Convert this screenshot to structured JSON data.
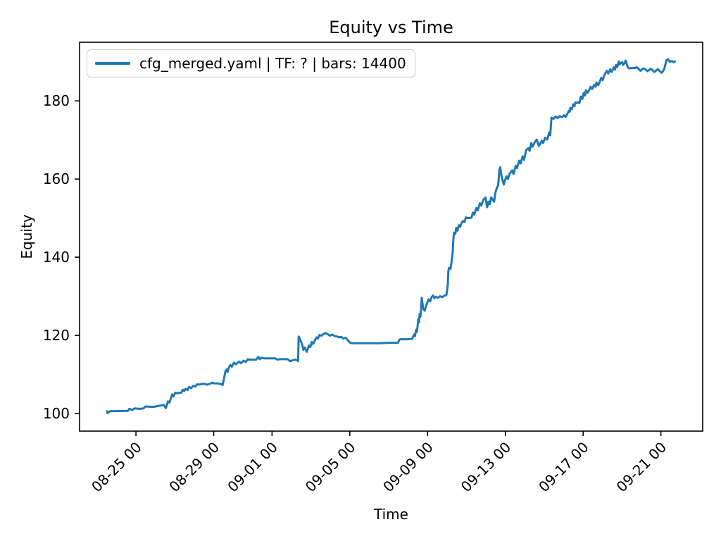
{
  "figure": {
    "title": "Equity vs Time",
    "xlabel": "Time",
    "ylabel": "Equity",
    "legend_label": "cfg_merged.yaml | TF: ? | bars: 14400",
    "colors": {
      "line": "#1f77b4",
      "spine": "#000000",
      "tick_label": "#000000",
      "legend_border": "#cccccc",
      "background": "#ffffff"
    }
  },
  "chart_data": {
    "type": "line",
    "title": "Equity vs Time",
    "xlabel": "Time",
    "ylabel": "Equity",
    "grid": false,
    "legend_position": "upper left",
    "legend_entries": [
      "cfg_merged.yaml | TF: ? | bars: 14400"
    ],
    "x_unit": "days relative to 08-25 00:00",
    "xlim": [
      -2.9,
      29.15
    ],
    "ylim": [
      95.5,
      195.0
    ],
    "y_ticks": [
      100,
      120,
      140,
      160,
      180
    ],
    "x_ticks": [
      {
        "day": 0,
        "label": "08-25 00"
      },
      {
        "day": 4,
        "label": "08-29 00"
      },
      {
        "day": 7,
        "label": "09-01 00"
      },
      {
        "day": 11,
        "label": "09-05 00"
      },
      {
        "day": 15,
        "label": "09-09 00"
      },
      {
        "day": 19,
        "label": "09-13 00"
      },
      {
        "day": 23,
        "label": "09-17 00"
      },
      {
        "day": 27,
        "label": "09-21 00"
      }
    ],
    "series": [
      {
        "name": "cfg_merged.yaml | TF: ? | bars: 14400",
        "color": "#1f77b4",
        "points": [
          [
            -1.49,
            100.6
          ],
          [
            -1.46,
            100.1
          ],
          [
            -1.34,
            100.6
          ],
          [
            -0.41,
            100.7
          ],
          [
            -0.34,
            101.2
          ],
          [
            -0.19,
            100.9
          ],
          [
            -0.08,
            101.3
          ],
          [
            0.2,
            101.2
          ],
          [
            0.39,
            101.3
          ],
          [
            0.49,
            101.8
          ],
          [
            0.9,
            101.7
          ],
          [
            1.1,
            101.9
          ],
          [
            1.32,
            102.1
          ],
          [
            1.43,
            102.2
          ],
          [
            1.54,
            101.4
          ],
          [
            1.65,
            103.1
          ],
          [
            1.72,
            102.8
          ],
          [
            1.79,
            103.7
          ],
          [
            1.86,
            104.9
          ],
          [
            1.94,
            104.4
          ],
          [
            2.01,
            105.3
          ],
          [
            2.08,
            105.2
          ],
          [
            2.33,
            105.3
          ],
          [
            2.41,
            106.1
          ],
          [
            2.48,
            105.7
          ],
          [
            2.55,
            106.3
          ],
          [
            2.66,
            106.0
          ],
          [
            2.73,
            106.8
          ],
          [
            2.84,
            106.5
          ],
          [
            2.95,
            107.1
          ],
          [
            3.05,
            106.9
          ],
          [
            3.16,
            107.5
          ],
          [
            3.23,
            107.4
          ],
          [
            3.49,
            107.6
          ],
          [
            3.67,
            107.4
          ],
          [
            3.85,
            107.7
          ],
          [
            3.92,
            107.9
          ],
          [
            4.03,
            107.7
          ],
          [
            4.21,
            107.7
          ],
          [
            4.39,
            107.5
          ],
          [
            4.46,
            107.3
          ],
          [
            4.53,
            109.0
          ],
          [
            4.6,
            110.8
          ],
          [
            4.68,
            111.3
          ],
          [
            4.71,
            110.6
          ],
          [
            4.78,
            111.8
          ],
          [
            4.86,
            112.4
          ],
          [
            4.93,
            112.0
          ],
          [
            5.04,
            113.0
          ],
          [
            5.15,
            112.6
          ],
          [
            5.29,
            113.3
          ],
          [
            5.4,
            112.9
          ],
          [
            5.54,
            113.5
          ],
          [
            5.65,
            113.2
          ],
          [
            5.76,
            113.9
          ],
          [
            5.83,
            113.8
          ],
          [
            6.19,
            113.8
          ],
          [
            6.3,
            114.5
          ],
          [
            6.37,
            113.9
          ],
          [
            6.48,
            114.3
          ],
          [
            6.59,
            114.1
          ],
          [
            7.17,
            114.1
          ],
          [
            7.27,
            113.8
          ],
          [
            7.38,
            113.9
          ],
          [
            7.81,
            113.9
          ],
          [
            7.92,
            113.4
          ],
          [
            8.18,
            113.8
          ],
          [
            8.32,
            113.6
          ],
          [
            8.34,
            113.4
          ],
          [
            8.37,
            119.7
          ],
          [
            8.54,
            117.8
          ],
          [
            8.61,
            116.3
          ],
          [
            8.68,
            116.9
          ],
          [
            8.79,
            115.8
          ],
          [
            8.9,
            117.4
          ],
          [
            8.97,
            117.0
          ],
          [
            9.04,
            118.3
          ],
          [
            9.11,
            117.8
          ],
          [
            9.22,
            118.9
          ],
          [
            9.29,
            119.5
          ],
          [
            9.36,
            119.2
          ],
          [
            9.44,
            120.1
          ],
          [
            9.54,
            119.9
          ],
          [
            9.65,
            120.4
          ],
          [
            9.76,
            120.6
          ],
          [
            9.87,
            120.3
          ],
          [
            9.98,
            119.9
          ],
          [
            10.09,
            120.2
          ],
          [
            10.23,
            119.8
          ],
          [
            10.34,
            119.7
          ],
          [
            10.45,
            119.5
          ],
          [
            10.56,
            119.6
          ],
          [
            10.66,
            119.2
          ],
          [
            10.77,
            119.4
          ],
          [
            10.88,
            118.9
          ],
          [
            10.95,
            118.4
          ],
          [
            11.02,
            118.1
          ],
          [
            11.13,
            118.0
          ],
          [
            11.5,
            118.0
          ],
          [
            12.0,
            118.0
          ],
          [
            12.5,
            118.0
          ],
          [
            13.0,
            118.1
          ],
          [
            13.48,
            118.1
          ],
          [
            13.55,
            118.9
          ],
          [
            13.62,
            119.0
          ],
          [
            13.94,
            119.0
          ],
          [
            14.2,
            119.1
          ],
          [
            14.31,
            120.2
          ],
          [
            14.35,
            119.8
          ],
          [
            14.41,
            121.4
          ],
          [
            14.45,
            120.9
          ],
          [
            14.49,
            122.5
          ],
          [
            14.52,
            124.1
          ],
          [
            14.56,
            123.3
          ],
          [
            14.59,
            125.5
          ],
          [
            14.63,
            124.8
          ],
          [
            14.67,
            127.0
          ],
          [
            14.7,
            129.6
          ],
          [
            14.77,
            127.0
          ],
          [
            14.85,
            126.3
          ],
          [
            14.92,
            127.5
          ],
          [
            14.99,
            128.5
          ],
          [
            15.06,
            129.2
          ],
          [
            15.13,
            128.7
          ],
          [
            15.21,
            129.8
          ],
          [
            15.28,
            130.2
          ],
          [
            15.35,
            129.5
          ],
          [
            15.42,
            129.9
          ],
          [
            15.53,
            129.6
          ],
          [
            15.64,
            130.0
          ],
          [
            15.75,
            129.8
          ],
          [
            15.86,
            130.1
          ],
          [
            15.97,
            130.4
          ],
          [
            16.04,
            133.0
          ],
          [
            16.07,
            136.5
          ],
          [
            16.11,
            137.3
          ],
          [
            16.18,
            137.0
          ],
          [
            16.21,
            138.0
          ],
          [
            16.29,
            141.0
          ],
          [
            16.32,
            144.0
          ],
          [
            16.36,
            146.3
          ],
          [
            16.43,
            146.0
          ],
          [
            16.47,
            147.5
          ],
          [
            16.54,
            146.8
          ],
          [
            16.61,
            148.2
          ],
          [
            16.68,
            147.8
          ],
          [
            16.75,
            148.8
          ],
          [
            16.83,
            149.3
          ],
          [
            16.9,
            149.0
          ],
          [
            16.97,
            150.2
          ],
          [
            17.04,
            150.0
          ],
          [
            17.26,
            150.1
          ],
          [
            17.33,
            151.4
          ],
          [
            17.4,
            150.9
          ],
          [
            17.51,
            152.6
          ],
          [
            17.58,
            152.0
          ],
          [
            17.69,
            153.8
          ],
          [
            17.76,
            153.2
          ],
          [
            17.87,
            154.7
          ],
          [
            17.98,
            155.3
          ],
          [
            18.06,
            152.8
          ],
          [
            18.13,
            154.2
          ],
          [
            18.2,
            153.6
          ],
          [
            18.27,
            155.3
          ],
          [
            18.34,
            154.8
          ],
          [
            18.42,
            154.2
          ],
          [
            18.49,
            156.5
          ],
          [
            18.56,
            157.7
          ],
          [
            18.63,
            158.4
          ],
          [
            18.7,
            162.5
          ],
          [
            18.74,
            163.0
          ],
          [
            18.81,
            160.5
          ],
          [
            18.88,
            159.3
          ],
          [
            18.92,
            158.6
          ],
          [
            18.99,
            159.8
          ],
          [
            19.06,
            160.7
          ],
          [
            19.13,
            160.0
          ],
          [
            19.21,
            161.3
          ],
          [
            19.28,
            161.8
          ],
          [
            19.35,
            162.2
          ],
          [
            19.42,
            161.3
          ],
          [
            19.53,
            163.4
          ],
          [
            19.6,
            162.8
          ],
          [
            19.71,
            164.7
          ],
          [
            19.78,
            164.0
          ],
          [
            19.89,
            165.8
          ],
          [
            19.96,
            164.9
          ],
          [
            20.07,
            167.4
          ],
          [
            20.18,
            167.9
          ],
          [
            20.25,
            167.2
          ],
          [
            20.33,
            169.2
          ],
          [
            20.4,
            168.3
          ],
          [
            20.51,
            169.4
          ],
          [
            20.61,
            170.1
          ],
          [
            20.72,
            168.5
          ],
          [
            20.79,
            169.0
          ],
          [
            20.87,
            169.8
          ],
          [
            20.94,
            169.2
          ],
          [
            21.05,
            170.6
          ],
          [
            21.15,
            170.1
          ],
          [
            21.26,
            171.9
          ],
          [
            21.31,
            171.2
          ],
          [
            21.37,
            175.7
          ],
          [
            21.48,
            175.4
          ],
          [
            21.59,
            176.0
          ],
          [
            21.7,
            175.6
          ],
          [
            21.8,
            176.1
          ],
          [
            21.91,
            175.8
          ],
          [
            22.02,
            176.3
          ],
          [
            22.09,
            175.9
          ],
          [
            22.17,
            176.5
          ],
          [
            22.27,
            177.5
          ],
          [
            22.31,
            177.2
          ],
          [
            22.35,
            178.2
          ],
          [
            22.42,
            177.9
          ],
          [
            22.49,
            179.1
          ],
          [
            22.56,
            178.7
          ],
          [
            22.6,
            179.6
          ],
          [
            22.67,
            179.4
          ],
          [
            22.74,
            179.7
          ],
          [
            22.81,
            179.4
          ],
          [
            22.88,
            181.1
          ],
          [
            22.96,
            180.5
          ],
          [
            23.03,
            182.0
          ],
          [
            23.1,
            181.4
          ],
          [
            23.14,
            182.7
          ],
          [
            23.24,
            182.1
          ],
          [
            23.39,
            183.6
          ],
          [
            23.46,
            183.0
          ],
          [
            23.57,
            184.1
          ],
          [
            23.64,
            183.6
          ],
          [
            23.68,
            184.7
          ],
          [
            23.78,
            184.0
          ],
          [
            23.93,
            185.9
          ],
          [
            24.0,
            185.3
          ],
          [
            24.11,
            186.8
          ],
          [
            24.22,
            187.7
          ],
          [
            24.29,
            187.0
          ],
          [
            24.4,
            188.1
          ],
          [
            24.47,
            187.4
          ],
          [
            24.58,
            188.6
          ],
          [
            24.65,
            188.0
          ],
          [
            24.69,
            189.2
          ],
          [
            24.76,
            188.7
          ],
          [
            24.83,
            190.1
          ],
          [
            24.87,
            189.3
          ],
          [
            24.94,
            189.7
          ],
          [
            25.01,
            189.9
          ],
          [
            25.05,
            189.2
          ],
          [
            25.12,
            189.6
          ],
          [
            25.19,
            190.3
          ],
          [
            25.27,
            189.0
          ],
          [
            25.32,
            188.5
          ],
          [
            25.37,
            188.3
          ],
          [
            25.48,
            188.4
          ],
          [
            25.66,
            188.4
          ],
          [
            25.77,
            188.6
          ],
          [
            25.95,
            187.7
          ],
          [
            26.06,
            188.2
          ],
          [
            26.13,
            188.3
          ],
          [
            26.31,
            187.6
          ],
          [
            26.42,
            188.0
          ],
          [
            26.49,
            188.2
          ],
          [
            26.67,
            187.4
          ],
          [
            26.78,
            187.9
          ],
          [
            26.85,
            188.1
          ],
          [
            27.03,
            187.2
          ],
          [
            27.11,
            187.6
          ],
          [
            27.18,
            188.3
          ],
          [
            27.29,
            190.4
          ],
          [
            27.36,
            190.7
          ],
          [
            27.45,
            190.0
          ],
          [
            27.57,
            190.2
          ],
          [
            27.65,
            189.9
          ],
          [
            27.72,
            190.1
          ]
        ]
      }
    ]
  }
}
